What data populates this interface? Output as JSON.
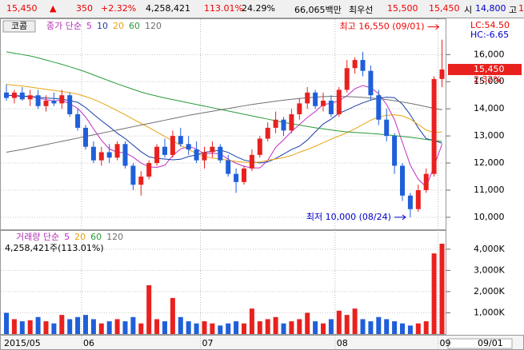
{
  "header": {
    "price": "15,450",
    "arrow": "▲",
    "change": "350",
    "rate": "+2.32%",
    "volume": "4,258,421",
    "vol_ratio": "113.01%",
    "turnover": "24.29%",
    "amount": "66,065백만",
    "best_label": "최우선",
    "ask": "15,500",
    "bid": "15,450",
    "open_label": "시",
    "open": "14,800",
    "high_label": "고",
    "high": "1"
  },
  "chart_data": [
    {
      "type": "candlestick",
      "title": "코콤",
      "legend_label": "종가 단순",
      "categories": [
        "2015/05",
        null,
        null,
        null,
        null,
        null,
        null,
        null,
        null,
        null,
        "06",
        null,
        null,
        null,
        null,
        null,
        null,
        null,
        null,
        null,
        null,
        null,
        null,
        null,
        null,
        "07",
        null,
        null,
        null,
        null,
        null,
        null,
        null,
        null,
        null,
        null,
        null,
        null,
        null,
        null,
        null,
        null,
        "08",
        null,
        null,
        null,
        null,
        null,
        null,
        null,
        null,
        null,
        null,
        null,
        null,
        "09"
      ],
      "open": [
        14600,
        14400,
        14600,
        14350,
        14500,
        14100,
        14300,
        14200,
        14500,
        13800,
        13300,
        12600,
        12100,
        12400,
        12200,
        12700,
        11900,
        11200,
        11500,
        12000,
        12600,
        12300,
        13000,
        12700,
        12500,
        12100,
        12400,
        12600,
        12100,
        11600,
        11300,
        11800,
        12300,
        12900,
        13300,
        13600,
        13200,
        13800,
        14200,
        14600,
        14100,
        14300,
        13800,
        14700,
        15500,
        15800,
        15400,
        14500,
        13600,
        13000,
        11900,
        10800,
        10300,
        11000,
        11600,
        15100
      ],
      "high": [
        14900,
        14700,
        14800,
        14700,
        14700,
        14500,
        14600,
        14700,
        14600,
        14000,
        13400,
        12800,
        12600,
        12700,
        12800,
        12800,
        12000,
        11700,
        12100,
        12700,
        12900,
        13200,
        13300,
        13000,
        12800,
        12600,
        12800,
        12700,
        12300,
        11800,
        11900,
        12500,
        13000,
        13500,
        13900,
        13700,
        14000,
        14400,
        14800,
        14700,
        14600,
        14500,
        14800,
        15800,
        15900,
        16100,
        15600,
        14700,
        14000,
        13100,
        12000,
        10900,
        11200,
        11800,
        15200,
        16550
      ],
      "low": [
        14300,
        14200,
        14300,
        14100,
        14000,
        13900,
        14100,
        14000,
        13700,
        13200,
        12500,
        12000,
        11900,
        12000,
        12100,
        11800,
        11000,
        10800,
        11400,
        11900,
        12200,
        12200,
        12600,
        12300,
        12000,
        11800,
        12200,
        12000,
        11500,
        10900,
        11200,
        11700,
        12200,
        12800,
        13100,
        13000,
        13100,
        13600,
        14000,
        14000,
        13900,
        13700,
        13700,
        14600,
        15300,
        15200,
        14300,
        13400,
        12800,
        11600,
        10600,
        10000,
        10200,
        10900,
        11500,
        14800
      ],
      "close": [
        14400,
        14600,
        14350,
        14500,
        14100,
        14300,
        14200,
        14500,
        13800,
        13300,
        12600,
        12100,
        12400,
        12200,
        12700,
        11900,
        11200,
        11500,
        12000,
        12600,
        12300,
        13000,
        12700,
        12500,
        12100,
        12400,
        12600,
        12100,
        11600,
        11300,
        11800,
        12300,
        12900,
        13300,
        13600,
        13200,
        13800,
        14200,
        14600,
        14100,
        14300,
        13800,
        14700,
        15500,
        15800,
        15400,
        14500,
        13600,
        13000,
        11900,
        10800,
        10300,
        11000,
        11600,
        15100,
        15450
      ],
      "up_color": "#e8211f",
      "down_color": "#1f5fd9",
      "series": [
        {
          "name": "5",
          "color": "#c42fc4",
          "values": [
            14500,
            14480,
            14450,
            14460,
            14390,
            14340,
            14290,
            14320,
            14180,
            14020,
            13700,
            13260,
            12840,
            12520,
            12400,
            12380,
            12220,
            12000,
            11860,
            11840,
            11920,
            12280,
            12520,
            12620,
            12520,
            12340,
            12360,
            12340,
            12140,
            11990,
            11880,
            11820,
            11820,
            12100,
            12580,
            12860,
            13160,
            13420,
            13680,
            13900,
            14160,
            14200,
            14300,
            14480,
            14740,
            14860,
            14780,
            14560,
            14160,
            13600,
            12760,
            11920,
            11400,
            11120,
            11880,
            12700
          ]
        },
        {
          "name": "10",
          "color": "#1a3fa8",
          "values": [
            14500,
            14490,
            14470,
            14460,
            14430,
            14400,
            14380,
            14360,
            14300,
            14240,
            14050,
            13800,
            13560,
            13340,
            13100,
            12900,
            12660,
            12420,
            12230,
            12170,
            12150,
            12120,
            12140,
            12240,
            12300,
            12400,
            12430,
            12480,
            12390,
            12240,
            12110,
            12050,
            12000,
            12040,
            12170,
            12330,
            12500,
            12620,
            12850,
            13150,
            13440,
            13620,
            13840,
            13960,
            14100,
            14220,
            14320,
            14390,
            14430,
            14410,
            14170,
            13780,
            13300,
            12900,
            12830,
            12730
          ]
        },
        {
          "name": "20",
          "color": "#e8a310",
          "values": [
            14900,
            14870,
            14840,
            14800,
            14760,
            14720,
            14680,
            14640,
            14600,
            14540,
            14450,
            14350,
            14220,
            14080,
            13930,
            13780,
            13620,
            13460,
            13310,
            13140,
            12980,
            12820,
            12650,
            12500,
            12350,
            12250,
            12180,
            12150,
            12100,
            12060,
            12030,
            12000,
            12040,
            12100,
            12150,
            12200,
            12280,
            12400,
            12500,
            12620,
            12750,
            12880,
            13000,
            13120,
            13260,
            13420,
            13580,
            13700,
            13760,
            13780,
            13740,
            13620,
            13420,
            13220,
            13120,
            13150
          ]
        },
        {
          "name": "60",
          "color": "#2a9a3a",
          "values": [
            16100,
            16050,
            16000,
            15950,
            15880,
            15800,
            15720,
            15640,
            15550,
            15460,
            15360,
            15250,
            15140,
            15030,
            14920,
            14820,
            14720,
            14620,
            14540,
            14470,
            14400,
            14340,
            14280,
            14220,
            14160,
            14100,
            14040,
            13980,
            13920,
            13860,
            13800,
            13740,
            13680,
            13620,
            13560,
            13500,
            13450,
            13400,
            13350,
            13300,
            13260,
            13220,
            13180,
            13150,
            13130,
            13110,
            13090,
            13070,
            13040,
            13010,
            12980,
            12950,
            12910,
            12870,
            12830,
            12800
          ]
        },
        {
          "name": "120",
          "color": "#707070",
          "values": [
            12400,
            12450,
            12500,
            12560,
            12620,
            12680,
            12740,
            12800,
            12860,
            12920,
            12980,
            13040,
            13100,
            13160,
            13220,
            13280,
            13340,
            13400,
            13460,
            13520,
            13580,
            13640,
            13700,
            13760,
            13810,
            13860,
            13910,
            13960,
            14010,
            14060,
            14110,
            14160,
            14200,
            14240,
            14280,
            14320,
            14350,
            14380,
            14410,
            14430,
            14450,
            14460,
            14460,
            14450,
            14440,
            14420,
            14400,
            14370,
            14340,
            14300,
            14250,
            14200,
            14140,
            14080,
            14020,
            13960
          ]
        }
      ],
      "ylim": [
        9555,
        17306
      ],
      "yticks": [
        {
          "value": 10000,
          "label": "10,000"
        },
        {
          "value": 11000,
          "label": "11,000"
        },
        {
          "value": 12000,
          "label": "12,000"
        },
        {
          "value": 13000,
          "label": "13,000"
        },
        {
          "value": 14000,
          "label": "14,000"
        },
        {
          "value": 15000,
          "label": "15,000"
        },
        {
          "value": 16000,
          "label": "16,000"
        }
      ],
      "grid": true,
      "annotations": {
        "high": "최고 16,550 (09/01)",
        "low": "최저 10,000 (08/24)"
      },
      "price_tag": "15,450",
      "change_tag": "2.32%",
      "lc": "LC:54.50",
      "hc": "HC:-6.65",
      "cursor_date": "09/01"
    },
    {
      "type": "bar",
      "legend_label": "거래량 단순",
      "subtitle": "4,258,421주(113.01%)",
      "legend": [
        {
          "name": "5",
          "color": "#c42fc4"
        },
        {
          "name": "20",
          "color": "#e8a310"
        },
        {
          "name": "60",
          "color": "#2a9a3a"
        },
        {
          "name": "120",
          "color": "#707070"
        }
      ],
      "values": [
        1000000,
        700000,
        600000,
        650000,
        800000,
        600000,
        500000,
        900000,
        700000,
        800000,
        900000,
        700000,
        500000,
        600000,
        700000,
        600000,
        800000,
        500000,
        2300000,
        700000,
        600000,
        1700000,
        800000,
        600000,
        500000,
        600000,
        500000,
        400000,
        500000,
        600000,
        500000,
        1200000,
        600000,
        700000,
        800000,
        500000,
        600000,
        700000,
        1000000,
        600000,
        500000,
        700000,
        1100000,
        900000,
        1200000,
        700000,
        600000,
        800000,
        700000,
        600000,
        500000,
        400000,
        500000,
        600000,
        3800000,
        4258421
      ],
      "ylim": [
        0,
        4860000
      ],
      "yticks": [
        {
          "value": 1000000,
          "label": "1,000K"
        },
        {
          "value": 2000000,
          "label": "2,000K"
        },
        {
          "value": 3000000,
          "label": "3,000K"
        },
        {
          "value": 4000000,
          "label": "4,000K"
        }
      ],
      "grid": true
    }
  ]
}
